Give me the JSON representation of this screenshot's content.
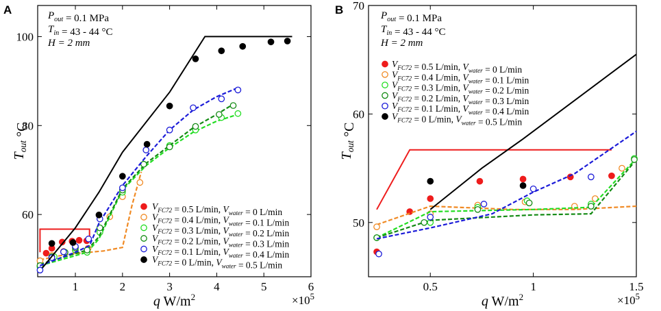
{
  "chart_data": [
    {
      "type": "scatter",
      "panel": "A",
      "annotations": [
        "P_out = 0.1 MPa",
        "T_in = 43 - 44 °C",
        "H = 2 mm"
      ],
      "xlabel": "q W/m²",
      "ylabel": "T_out °C",
      "x_multiplier": "×10^5",
      "xlim": [
        0.2,
        6
      ],
      "ylim": [
        46,
        107
      ],
      "xticks": [
        1,
        2,
        3,
        4,
        5,
        6
      ],
      "yticks": [
        60,
        80,
        100
      ],
      "legend_position": "bottom-right",
      "series": [
        {
          "name": "V_FC72 = 0.5 L/min, V_water = 0 L/min",
          "color": "#ee1c1c",
          "marker": "filled",
          "x": [
            0.38,
            0.5,
            0.72,
            0.93,
            1.08,
            1.24
          ],
          "y": [
            51.3,
            52.4,
            53.8,
            54.0,
            54.2,
            54.1
          ],
          "fit": {
            "x": [
              0.25,
              0.25,
              1.3,
              1.3
            ],
            "y": [
              51.5,
              56.7,
              56.7,
              54.0
            ],
            "style": "solid"
          }
        },
        {
          "name": "V_FC72 = 0.4 L/min, V_water = 0.1 L/min",
          "color": "#f08a24",
          "marker": "open",
          "x": [
            0.25,
            0.5,
            0.75,
            1.0,
            1.27,
            1.52,
            1.73,
            2.0,
            2.37
          ],
          "y": [
            49.6,
            50.8,
            51.7,
            51.9,
            52.4,
            56.0,
            59.5,
            64.0,
            67.2
          ],
          "fit": {
            "x": [
              0.25,
              0.8,
              1.6,
              2.0,
              2.2,
              2.4
            ],
            "y": [
              49.8,
              51.0,
              51.8,
              52.6,
              62.0,
              69.6
            ],
            "style": "dashed"
          }
        },
        {
          "name": "V_FC72 = 0.3 L/min, V_water = 0.2 L/min",
          "color": "#22dd22",
          "marker": "open",
          "x": [
            0.25,
            0.55,
            0.78,
            1.0,
            1.25,
            1.52,
            2.0,
            2.45,
            3.0,
            3.55,
            4.1,
            4.45
          ],
          "y": [
            48.2,
            50.5,
            51.5,
            52.0,
            51.5,
            56.0,
            65.0,
            71.3,
            75.5,
            79.0,
            81.8,
            82.7
          ],
          "fit": {
            "x": [
              0.25,
              1.25,
              1.5,
              2.0,
              2.5,
              3.0,
              3.5,
              4.0,
              4.45
            ],
            "y": [
              48.5,
              51.5,
              54.5,
              65.5,
              71.0,
              75.0,
              78.5,
              81.0,
              82.5
            ],
            "style": "dashed"
          }
        },
        {
          "name": "V_FC72 = 0.2 L/min, V_water = 0.3 L/min",
          "color": "#138a13",
          "marker": "open",
          "x": [
            0.25,
            0.5,
            0.78,
            1.0,
            1.25,
            1.52,
            2.0,
            2.45,
            3.0,
            3.55,
            4.05,
            4.35
          ],
          "y": [
            48.5,
            50.5,
            51.5,
            52.5,
            52.0,
            57.0,
            65.5,
            71.3,
            75.2,
            79.8,
            82.5,
            84.5
          ],
          "fit": {
            "x": [
              0.25,
              1.25,
              1.5,
              2.0,
              2.5,
              3.0,
              3.5,
              4.0,
              4.35
            ],
            "y": [
              48.8,
              52.0,
              55.0,
              65.8,
              71.5,
              75.5,
              79.5,
              82.5,
              84.8
            ],
            "style": "dashed"
          }
        },
        {
          "name": "V_FC72 = 0.1 L/min, V_water = 0.4 L/min",
          "color": "#1a1ad8",
          "marker": "open",
          "x": [
            0.25,
            0.5,
            0.75,
            1.0,
            1.28,
            1.52,
            2.0,
            2.5,
            3.0,
            3.5,
            4.1,
            4.45
          ],
          "y": [
            47.5,
            50.3,
            51.6,
            52.8,
            54.5,
            59.0,
            66.0,
            74.5,
            79.0,
            84.0,
            86.0,
            88.0
          ],
          "fit": {
            "x": [
              0.25,
              1.0,
              1.3,
              1.5,
              2.0,
              2.5,
              3.0,
              3.5,
              4.0,
              4.45
            ],
            "y": [
              48.5,
              51.5,
              53.0,
              58.0,
              66.5,
              73.0,
              79.0,
              83.5,
              86.5,
              88.5
            ],
            "style": "dashed"
          }
        },
        {
          "name": "V_FC72 = 0 L/min, V_water = 0.5 L/min",
          "color": "#000000",
          "marker": "filled",
          "x": [
            0.5,
            0.95,
            1.5,
            2.0,
            2.52,
            3.0,
            3.55,
            4.1,
            4.55,
            5.15,
            5.5
          ],
          "y": [
            53.5,
            53.7,
            59.9,
            68.6,
            75.8,
            84.4,
            95.0,
            96.8,
            97.8,
            98.8,
            99.0
          ],
          "fit": {
            "x": [
              0.3,
              1.0,
              1.5,
              2.0,
              3.0,
              3.75,
              5.6
            ],
            "y": [
              48.0,
              57.0,
              65.0,
              74.0,
              87.5,
              100.0,
              100.0
            ],
            "style": "solid"
          }
        }
      ]
    },
    {
      "type": "scatter",
      "panel": "B",
      "annotations": [
        "P_out = 0.1 MPa",
        "T_in = 43 - 44 °C",
        "H = 2 mm"
      ],
      "xlabel": "q W/m²",
      "ylabel": "T_out °C",
      "x_multiplier": "×10^5",
      "xlim": [
        0.2,
        1.5
      ],
      "ylim": [
        45,
        70
      ],
      "xticks": [
        0.5,
        1,
        1.5
      ],
      "yticks": [
        50,
        60,
        70
      ],
      "legend_position": "top-left",
      "series": [
        {
          "name": "V_FC72 = 0.5 L/min, V_water = 0 L/min",
          "color": "#ee1c1c",
          "marker": "filled",
          "x": [
            0.24,
            0.4,
            0.5,
            0.74,
            0.95,
            1.18,
            1.38
          ],
          "y": [
            47.3,
            51.0,
            52.2,
            53.8,
            54.0,
            54.2,
            54.3
          ],
          "fit": {
            "x": [
              0.24,
              0.4,
              0.4,
              1.38
            ],
            "y": [
              51.2,
              56.7,
              56.7,
              56.7
            ],
            "style": "solid"
          }
        },
        {
          "name": "V_FC72 = 0.4 L/min, V_water = 0.1 L/min",
          "color": "#f08a24",
          "marker": "open",
          "x": [
            0.24,
            0.5,
            0.73,
            0.96,
            1.2,
            1.3,
            1.43
          ],
          "y": [
            49.6,
            50.8,
            51.6,
            51.9,
            51.5,
            52.2,
            55.0
          ],
          "fit": {
            "x": [
              0.24,
              0.5,
              0.9,
              1.2,
              1.5
            ],
            "y": [
              49.8,
              51.5,
              51.2,
              51.2,
              51.5
            ],
            "style": "dashed"
          }
        },
        {
          "name": "V_FC72 = 0.3 L/min, V_water = 0.2 L/min",
          "color": "#22dd22",
          "marker": "open",
          "x": [
            0.24,
            0.5,
            0.73,
            0.97,
            1.28,
            1.49
          ],
          "y": [
            48.6,
            50.0,
            51.4,
            52.0,
            51.7,
            55.9
          ],
          "fit": {
            "x": [
              0.24,
              0.5,
              1.0,
              1.28,
              1.5
            ],
            "y": [
              48.6,
              51.0,
              51.2,
              51.4,
              55.9
            ],
            "style": "dashed"
          }
        },
        {
          "name": "V_FC72 = 0.2 L/min, V_water = 0.3 L/min",
          "color": "#138a13",
          "marker": "open",
          "x": [
            0.24,
            0.47,
            0.73,
            0.98,
            1.28,
            1.49
          ],
          "y": [
            48.6,
            50.0,
            51.2,
            51.8,
            51.5,
            55.8
          ],
          "fit": {
            "x": [
              0.24,
              0.5,
              1.0,
              1.28,
              1.5
            ],
            "y": [
              48.6,
              50.2,
              50.7,
              50.8,
              55.8
            ],
            "style": "dashed"
          }
        },
        {
          "name": "V_FC72 = 0.1 L/min, V_water = 0.4 L/min",
          "color": "#1a1ad8",
          "marker": "open",
          "x": [
            0.25,
            0.5,
            0.76,
            1.0,
            1.28
          ],
          "y": [
            47.1,
            50.5,
            51.7,
            53.1,
            54.2
          ],
          "fit": {
            "x": [
              0.24,
              0.5,
              0.8,
              1.0,
              1.2,
              1.5
            ],
            "y": [
              48.5,
              49.5,
              50.8,
              52.8,
              54.5,
              58.4
            ],
            "style": "dashed"
          }
        },
        {
          "name": "V_FC72 = 0 L/min, V_water = 0.5 L/min",
          "color": "#000000",
          "marker": "filled",
          "x": [
            0.5,
            0.95
          ],
          "y": [
            53.8,
            53.4
          ],
          "fit": {
            "x": [
              0.5,
              0.75,
              0.95,
              1.5
            ],
            "y": [
              51.2,
              55.0,
              57.7,
              65.5
            ],
            "style": "solid"
          }
        }
      ]
    }
  ]
}
